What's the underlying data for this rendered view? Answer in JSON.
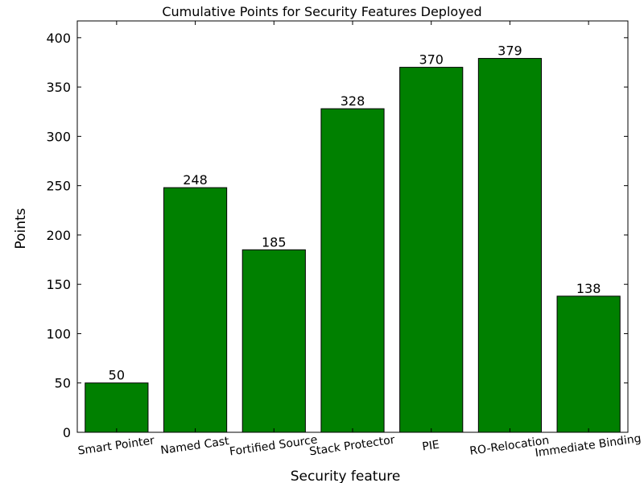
{
  "chart_data": {
    "type": "bar",
    "title": "Cumulative Points for Security Features Deployed",
    "xlabel": "Security feature",
    "ylabel": "Points",
    "categories": [
      "Smart Pointer",
      "Named Cast",
      "Fortified Source",
      "Stack Protector",
      "PIE",
      "RO-Relocation",
      "Immediate Binding"
    ],
    "values": [
      50,
      248,
      185,
      328,
      370,
      379,
      138
    ],
    "data_labels": [
      "50",
      "248",
      "185",
      "328",
      "370",
      "379",
      "138"
    ],
    "yticks": [
      0,
      50,
      100,
      150,
      200,
      250,
      300,
      350,
      400
    ],
    "ylim": [
      0,
      417
    ],
    "grid": false,
    "legend": "none",
    "bar_color": "#008000",
    "bar_edge_color": "#000000"
  }
}
